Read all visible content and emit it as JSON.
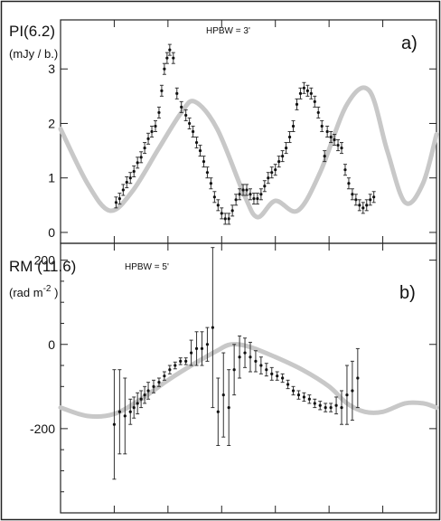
{
  "chart_data": [
    {
      "type": "scatter",
      "panel_label": "a)",
      "ylabel_quantity": "PI(6.2)",
      "ylabel_unit": "(mJy / b.)",
      "annotation": "HPBW = 3'",
      "ylim": [
        -0.2,
        3.9
      ],
      "yticks": [
        0,
        1,
        2,
        3
      ],
      "ytick_labels": [
        "0",
        "1",
        "2",
        "3"
      ],
      "xlim": [
        0,
        420
      ],
      "xticks": [
        60,
        120,
        180,
        240,
        300,
        360
      ],
      "model_curve": {
        "x": [
          0,
          30,
          55,
          80,
          110,
          135,
          150,
          175,
          205,
          220,
          240,
          265,
          290,
          320,
          345,
          365,
          385,
          405,
          420
        ],
        "y": [
          1.9,
          0.9,
          0.4,
          0.75,
          1.55,
          2.2,
          2.4,
          1.9,
          0.7,
          0.28,
          0.58,
          0.4,
          1.1,
          2.35,
          2.6,
          1.5,
          0.55,
          0.9,
          1.8
        ]
      },
      "points": [
        {
          "x": 62,
          "y": 0.55,
          "err": 0.1
        },
        {
          "x": 66,
          "y": 0.62,
          "err": 0.1
        },
        {
          "x": 70,
          "y": 0.78,
          "err": 0.1
        },
        {
          "x": 74,
          "y": 0.92,
          "err": 0.1
        },
        {
          "x": 78,
          "y": 1.0,
          "err": 0.1
        },
        {
          "x": 82,
          "y": 1.12,
          "err": 0.1
        },
        {
          "x": 86,
          "y": 1.28,
          "err": 0.1
        },
        {
          "x": 90,
          "y": 1.38,
          "err": 0.1
        },
        {
          "x": 94,
          "y": 1.55,
          "err": 0.1
        },
        {
          "x": 98,
          "y": 1.72,
          "err": 0.1
        },
        {
          "x": 102,
          "y": 1.85,
          "err": 0.1
        },
        {
          "x": 106,
          "y": 1.95,
          "err": 0.1
        },
        {
          "x": 110,
          "y": 2.2,
          "err": 0.1
        },
        {
          "x": 113,
          "y": 2.6,
          "err": 0.1
        },
        {
          "x": 116,
          "y": 3.0,
          "err": 0.1
        },
        {
          "x": 119,
          "y": 3.2,
          "err": 0.1
        },
        {
          "x": 122,
          "y": 3.35,
          "err": 0.1
        },
        {
          "x": 126,
          "y": 3.2,
          "err": 0.1
        },
        {
          "x": 130,
          "y": 2.55,
          "err": 0.1
        },
        {
          "x": 135,
          "y": 2.3,
          "err": 0.1
        },
        {
          "x": 140,
          "y": 2.15,
          "err": 0.1
        },
        {
          "x": 144,
          "y": 2.0,
          "err": 0.1
        },
        {
          "x": 148,
          "y": 1.85,
          "err": 0.1
        },
        {
          "x": 152,
          "y": 1.65,
          "err": 0.1
        },
        {
          "x": 156,
          "y": 1.5,
          "err": 0.1
        },
        {
          "x": 160,
          "y": 1.3,
          "err": 0.1
        },
        {
          "x": 164,
          "y": 1.1,
          "err": 0.1
        },
        {
          "x": 168,
          "y": 0.9,
          "err": 0.1
        },
        {
          "x": 172,
          "y": 0.65,
          "err": 0.1
        },
        {
          "x": 176,
          "y": 0.5,
          "err": 0.1
        },
        {
          "x": 180,
          "y": 0.35,
          "err": 0.1
        },
        {
          "x": 184,
          "y": 0.25,
          "err": 0.1
        },
        {
          "x": 188,
          "y": 0.25,
          "err": 0.1
        },
        {
          "x": 192,
          "y": 0.4,
          "err": 0.1
        },
        {
          "x": 196,
          "y": 0.6,
          "err": 0.1
        },
        {
          "x": 200,
          "y": 0.7,
          "err": 0.1
        },
        {
          "x": 204,
          "y": 0.78,
          "err": 0.1
        },
        {
          "x": 208,
          "y": 0.78,
          "err": 0.1
        },
        {
          "x": 212,
          "y": 0.7,
          "err": 0.1
        },
        {
          "x": 216,
          "y": 0.62,
          "err": 0.1
        },
        {
          "x": 220,
          "y": 0.62,
          "err": 0.1
        },
        {
          "x": 224,
          "y": 0.7,
          "err": 0.1
        },
        {
          "x": 228,
          "y": 0.85,
          "err": 0.1
        },
        {
          "x": 232,
          "y": 1.0,
          "err": 0.1
        },
        {
          "x": 236,
          "y": 1.1,
          "err": 0.1
        },
        {
          "x": 240,
          "y": 1.15,
          "err": 0.1
        },
        {
          "x": 244,
          "y": 1.3,
          "err": 0.1
        },
        {
          "x": 248,
          "y": 1.4,
          "err": 0.1
        },
        {
          "x": 252,
          "y": 1.55,
          "err": 0.1
        },
        {
          "x": 256,
          "y": 1.75,
          "err": 0.1
        },
        {
          "x": 260,
          "y": 1.95,
          "err": 0.1
        },
        {
          "x": 264,
          "y": 2.35,
          "err": 0.1
        },
        {
          "x": 268,
          "y": 2.55,
          "err": 0.1
        },
        {
          "x": 272,
          "y": 2.65,
          "err": 0.1
        },
        {
          "x": 276,
          "y": 2.6,
          "err": 0.1
        },
        {
          "x": 280,
          "y": 2.55,
          "err": 0.1
        },
        {
          "x": 284,
          "y": 2.4,
          "err": 0.1
        },
        {
          "x": 288,
          "y": 2.2,
          "err": 0.1
        },
        {
          "x": 292,
          "y": 1.95,
          "err": 0.1
        },
        {
          "x": 295,
          "y": 1.4,
          "err": 0.1
        },
        {
          "x": 298,
          "y": 1.85,
          "err": 0.1
        },
        {
          "x": 302,
          "y": 1.75,
          "err": 0.1
        },
        {
          "x": 306,
          "y": 1.7,
          "err": 0.1
        },
        {
          "x": 310,
          "y": 1.6,
          "err": 0.1
        },
        {
          "x": 314,
          "y": 1.55,
          "err": 0.1
        },
        {
          "x": 318,
          "y": 1.15,
          "err": 0.1
        },
        {
          "x": 322,
          "y": 0.9,
          "err": 0.1
        },
        {
          "x": 326,
          "y": 0.7,
          "err": 0.1
        },
        {
          "x": 330,
          "y": 0.6,
          "err": 0.1
        },
        {
          "x": 334,
          "y": 0.5,
          "err": 0.1
        },
        {
          "x": 338,
          "y": 0.45,
          "err": 0.1
        },
        {
          "x": 342,
          "y": 0.5,
          "err": 0.1
        },
        {
          "x": 346,
          "y": 0.6,
          "err": 0.1
        },
        {
          "x": 350,
          "y": 0.65,
          "err": 0.1
        }
      ]
    },
    {
      "type": "scatter",
      "panel_label": "b)",
      "ylabel_quantity": "RM (11.6)",
      "ylabel_unit_base": "(rad m",
      "ylabel_unit_exp": "-2",
      "ylabel_unit_close": " )",
      "annotation": "HPBW = 5'",
      "ylim": [
        -400,
        240
      ],
      "yticks": [
        -200,
        0,
        200
      ],
      "ytick_labels": [
        "-200",
        "0",
        "200"
      ],
      "minor_yticks": [
        -350,
        -300,
        -250,
        -150,
        -100,
        -50,
        50,
        100,
        150
      ],
      "xlim": [
        0,
        420
      ],
      "xticks": [
        60,
        120,
        180,
        240,
        300,
        360
      ],
      "model_curve": {
        "x": [
          0,
          30,
          60,
          90,
          120,
          150,
          175,
          190,
          210,
          240,
          270,
          300,
          320,
          340,
          360,
          385,
          405,
          420
        ],
        "y": [
          -150,
          -170,
          -165,
          -130,
          -85,
          -45,
          -15,
          0,
          -5,
          -30,
          -60,
          -100,
          -140,
          -160,
          -160,
          -140,
          -140,
          -150
        ]
      },
      "points": [
        {
          "x": 60,
          "y": -190,
          "err": 130
        },
        {
          "x": 66,
          "y": -160,
          "err": 100
        },
        {
          "x": 72,
          "y": -170,
          "err": 90
        },
        {
          "x": 78,
          "y": -160,
          "err": 30
        },
        {
          "x": 82,
          "y": -150,
          "err": 25
        },
        {
          "x": 86,
          "y": -140,
          "err": 25
        },
        {
          "x": 90,
          "y": -130,
          "err": 20
        },
        {
          "x": 94,
          "y": -120,
          "err": 20
        },
        {
          "x": 98,
          "y": -110,
          "err": 20
        },
        {
          "x": 104,
          "y": -100,
          "err": 15
        },
        {
          "x": 110,
          "y": -90,
          "err": 10
        },
        {
          "x": 116,
          "y": -75,
          "err": 10
        },
        {
          "x": 122,
          "y": -60,
          "err": 10
        },
        {
          "x": 128,
          "y": -50,
          "err": 8
        },
        {
          "x": 134,
          "y": -40,
          "err": 8
        },
        {
          "x": 140,
          "y": -40,
          "err": 8
        },
        {
          "x": 146,
          "y": -20,
          "err": 30
        },
        {
          "x": 152,
          "y": -10,
          "err": 40
        },
        {
          "x": 158,
          "y": -10,
          "err": 40
        },
        {
          "x": 164,
          "y": 0,
          "err": 40
        },
        {
          "x": 170,
          "y": 40,
          "err": 190
        },
        {
          "x": 176,
          "y": -160,
          "err": 80
        },
        {
          "x": 182,
          "y": -120,
          "err": 100
        },
        {
          "x": 188,
          "y": -150,
          "err": 90
        },
        {
          "x": 194,
          "y": -60,
          "err": 60
        },
        {
          "x": 200,
          "y": -30,
          "err": 50
        },
        {
          "x": 206,
          "y": -20,
          "err": 35
        },
        {
          "x": 212,
          "y": -30,
          "err": 35
        },
        {
          "x": 218,
          "y": -40,
          "err": 25
        },
        {
          "x": 224,
          "y": -50,
          "err": 20
        },
        {
          "x": 230,
          "y": -60,
          "err": 15
        },
        {
          "x": 236,
          "y": -70,
          "err": 15
        },
        {
          "x": 242,
          "y": -75,
          "err": 10
        },
        {
          "x": 248,
          "y": -80,
          "err": 10
        },
        {
          "x": 254,
          "y": -95,
          "err": 10
        },
        {
          "x": 260,
          "y": -110,
          "err": 10
        },
        {
          "x": 266,
          "y": -120,
          "err": 10
        },
        {
          "x": 272,
          "y": -125,
          "err": 10
        },
        {
          "x": 278,
          "y": -130,
          "err": 10
        },
        {
          "x": 284,
          "y": -140,
          "err": 10
        },
        {
          "x": 290,
          "y": -145,
          "err": 10
        },
        {
          "x": 296,
          "y": -150,
          "err": 10
        },
        {
          "x": 302,
          "y": -150,
          "err": 10
        },
        {
          "x": 308,
          "y": -145,
          "err": 20
        },
        {
          "x": 314,
          "y": -150,
          "err": 40
        },
        {
          "x": 320,
          "y": -120,
          "err": 70
        },
        {
          "x": 326,
          "y": -110,
          "err": 70
        },
        {
          "x": 332,
          "y": -80,
          "err": 70
        }
      ]
    }
  ]
}
